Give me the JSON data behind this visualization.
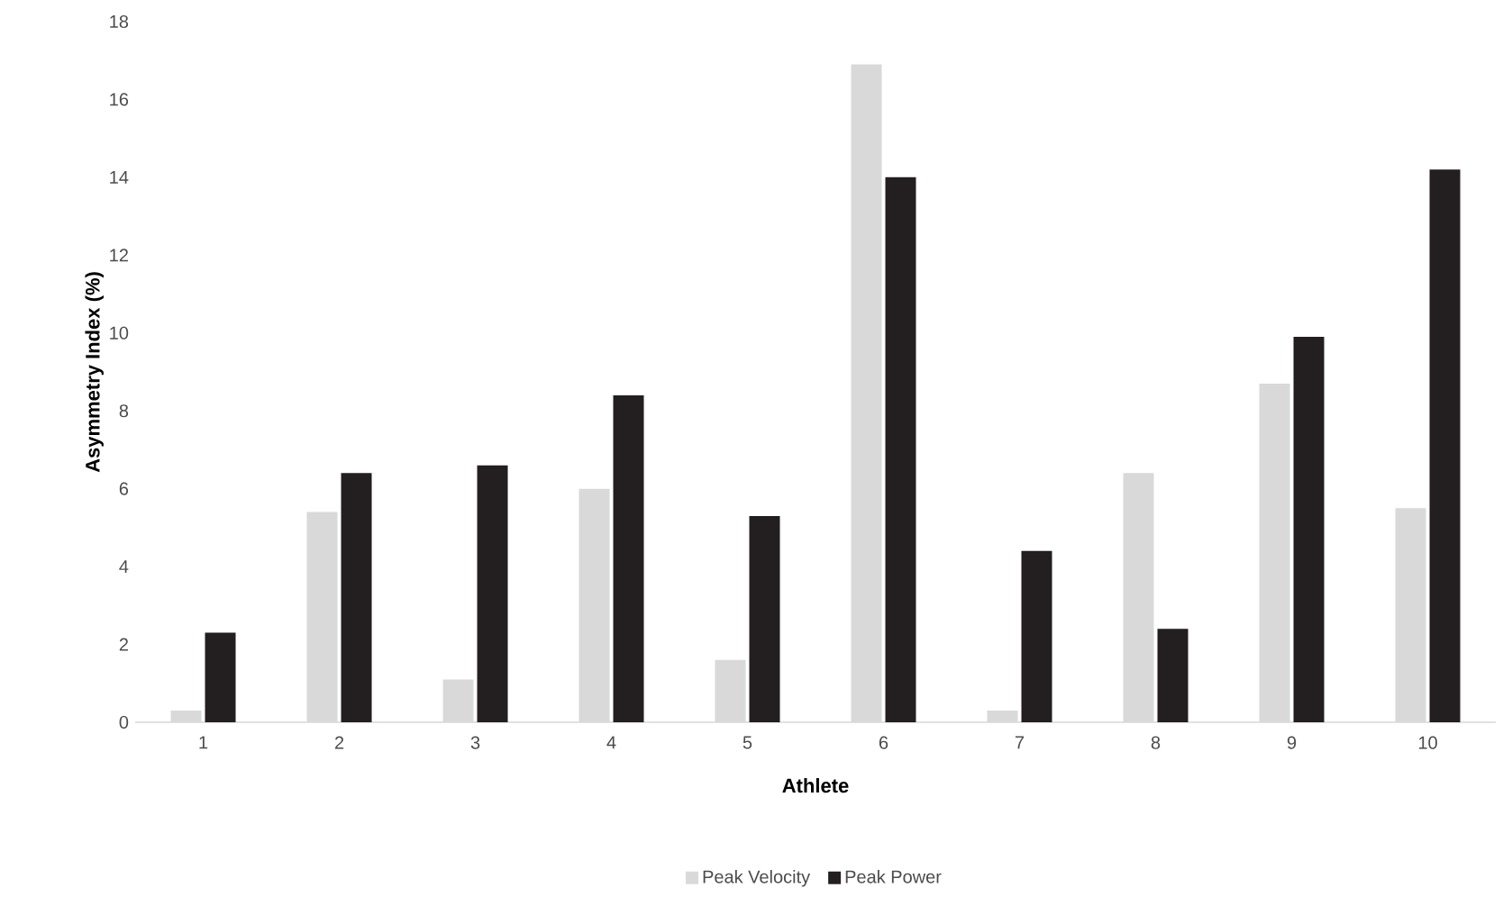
{
  "chart_data": {
    "type": "bar",
    "xlabel": "Athlete",
    "ylabel": "Asymmetry Index (%)",
    "categories": [
      "1",
      "2",
      "3",
      "4",
      "5",
      "6",
      "7",
      "8",
      "9",
      "10"
    ],
    "series": [
      {
        "name": "Peak Velocity",
        "color": "#d9d9d9",
        "values": [
          0.3,
          5.4,
          1.1,
          6.0,
          1.6,
          16.9,
          0.3,
          6.4,
          8.7,
          5.5
        ]
      },
      {
        "name": "Peak Power",
        "color": "#231f20",
        "values": [
          2.3,
          6.4,
          6.6,
          8.4,
          5.3,
          14.0,
          4.4,
          2.4,
          9.9,
          14.2
        ]
      }
    ],
    "ylim": [
      0,
      18
    ],
    "yticks": [
      0,
      2,
      4,
      6,
      8,
      10,
      12,
      14,
      16,
      18
    ],
    "legend": "bottom"
  }
}
